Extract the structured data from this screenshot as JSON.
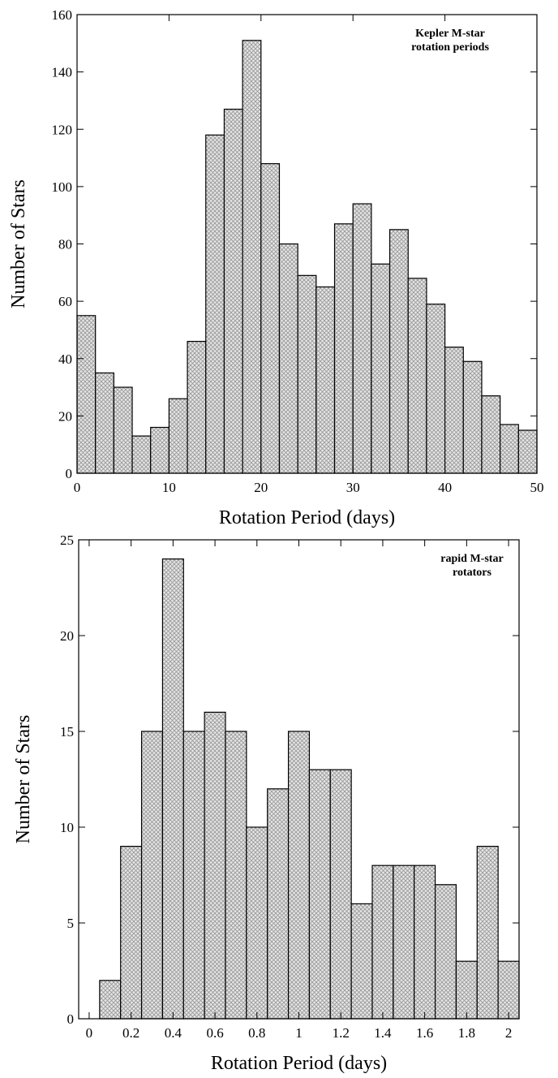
{
  "chart_data": [
    {
      "type": "histogram",
      "annotation": [
        "Kepler M-star",
        "rotation periods"
      ],
      "x_label": "Rotation Period (days)",
      "y_label": "Number of Stars",
      "bins": [
        0,
        2,
        4,
        6,
        8,
        10,
        12,
        14,
        16,
        18,
        20,
        22,
        24,
        26,
        28,
        30,
        32,
        34,
        36,
        38,
        40,
        42,
        44,
        46,
        48,
        50
      ],
      "values": [
        55,
        35,
        30,
        13,
        16,
        26,
        46,
        118,
        127,
        151,
        108,
        80,
        69,
        65,
        87,
        94,
        73,
        85,
        68,
        59,
        44,
        39,
        27,
        17,
        15
      ],
      "color": "#9a9a9a",
      "xlim": [
        0,
        50
      ],
      "xticks": [
        0,
        10,
        20,
        30,
        40,
        50
      ],
      "ylim": [
        0,
        160
      ],
      "yticks": [
        0,
        20,
        40,
        60,
        80,
        100,
        120,
        140,
        160
      ]
    },
    {
      "type": "histogram",
      "annotation": [
        "rapid M-star",
        "rotators"
      ],
      "x_label": "Rotation Period (days)",
      "y_label": "Number of Stars",
      "bins": [
        0.05,
        0.15,
        0.25,
        0.35,
        0.45,
        0.55,
        0.65,
        0.75,
        0.85,
        0.95,
        1.05,
        1.15,
        1.25,
        1.35,
        1.45,
        1.55,
        1.65,
        1.75,
        1.85,
        1.95,
        2.05
      ],
      "values": [
        2,
        9,
        15,
        24,
        15,
        16,
        15,
        10,
        12,
        15,
        13,
        13,
        6,
        8,
        8,
        8,
        7,
        3,
        9,
        3
      ],
      "color": "#9a9a9a",
      "xlim": [
        -0.05,
        2.05
      ],
      "xticks": [
        0,
        0.2,
        0.4,
        0.6,
        0.8,
        1,
        1.2,
        1.4,
        1.6,
        1.8,
        2
      ],
      "ylim": [
        0,
        25
      ],
      "yticks": [
        0,
        5,
        10,
        15,
        20,
        25
      ]
    }
  ]
}
